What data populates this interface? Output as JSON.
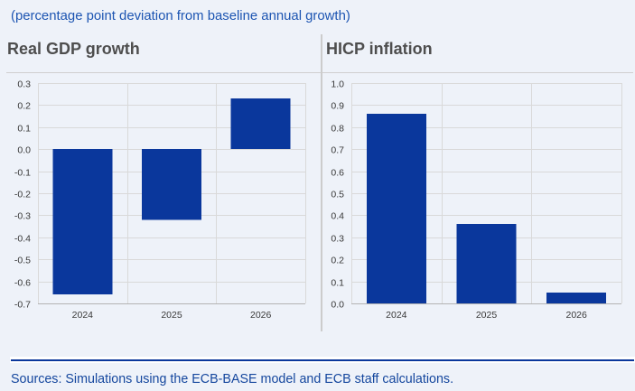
{
  "page": {
    "subtitle": "(percentage point deviation from baseline annual growth)",
    "sources": "Sources: Simulations using the ECB-BASE model and ECB staff calculations."
  },
  "colors": {
    "background": "#eef2f9",
    "bar": "#0a379c",
    "footer_rule": "#0a379c",
    "subtitle_text": "#1d55b2",
    "sources_text": "#15479e",
    "title_text": "#4e4e4e",
    "grid_line": "#d9d9d9",
    "axis_line": "#b3b3b3",
    "tick_text": "#383838",
    "divider_line": "#cccccc"
  },
  "chart_data": [
    {
      "type": "bar",
      "title": "Real GDP growth",
      "categories": [
        "2024",
        "2025",
        "2026"
      ],
      "values": [
        -0.66,
        -0.32,
        0.23
      ],
      "ylim": [
        -0.7,
        0.3
      ],
      "tick_step": 0.1,
      "yticks": [
        "0.3",
        "0.2",
        "0.1",
        "0.0",
        "-0.1",
        "-0.2",
        "-0.3",
        "-0.4",
        "-0.5",
        "-0.6",
        "-0.7"
      ],
      "grid": true,
      "legend": "none"
    },
    {
      "type": "bar",
      "title": "HICP inflation",
      "categories": [
        "2024",
        "2025",
        "2026"
      ],
      "values": [
        0.86,
        0.36,
        0.05
      ],
      "ylim": [
        0.0,
        1.0
      ],
      "tick_step": 0.1,
      "yticks": [
        "1.0",
        "0.9",
        "0.8",
        "0.7",
        "0.6",
        "0.5",
        "0.4",
        "0.3",
        "0.2",
        "0.1",
        "0.0"
      ],
      "grid": true,
      "legend": "none"
    }
  ]
}
